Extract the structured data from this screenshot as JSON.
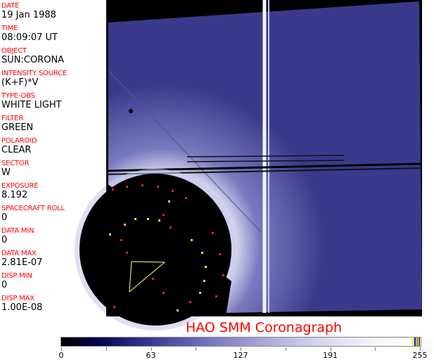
{
  "header": [
    {
      "label": "DATE",
      "value": "19 Jan 1988"
    },
    {
      "label": "TIME",
      "value": "08:09:07 UT"
    },
    {
      "label": "OBJECT",
      "value": "SUN:CORONA"
    },
    {
      "label": "INTENSITY SOURCE",
      "value": "(K+F)*V"
    },
    {
      "label": "TYPE-OBS",
      "value": "WHITE LIGHT"
    },
    {
      "label": "FILTER",
      "value": "GREEN"
    },
    {
      "label": "POLAROID",
      "value": "CLEAR"
    },
    {
      "label": "SECTOR",
      "value": "W"
    },
    {
      "label": "EXPOSURE",
      "value": "8.192"
    },
    {
      "label": "SPACECRAFT ROLL",
      "value": "0"
    },
    {
      "label": "DATA MIN",
      "value": "0"
    },
    {
      "label": "DATA MAX",
      "value": "2.81E-07"
    },
    {
      "label": "DISP MIN",
      "value": "0"
    },
    {
      "label": "DISP MAX",
      "value": "1.00E-08"
    }
  ],
  "title": "HAO  SMM Coronagraph",
  "colorbar": {
    "ticks": [
      "0",
      "63",
      "127",
      "191",
      "255"
    ],
    "colormap": "black-blue-white",
    "accent_colors": [
      "#ffff00",
      "#0000ff",
      "#00c000",
      "#ff0000"
    ]
  }
}
